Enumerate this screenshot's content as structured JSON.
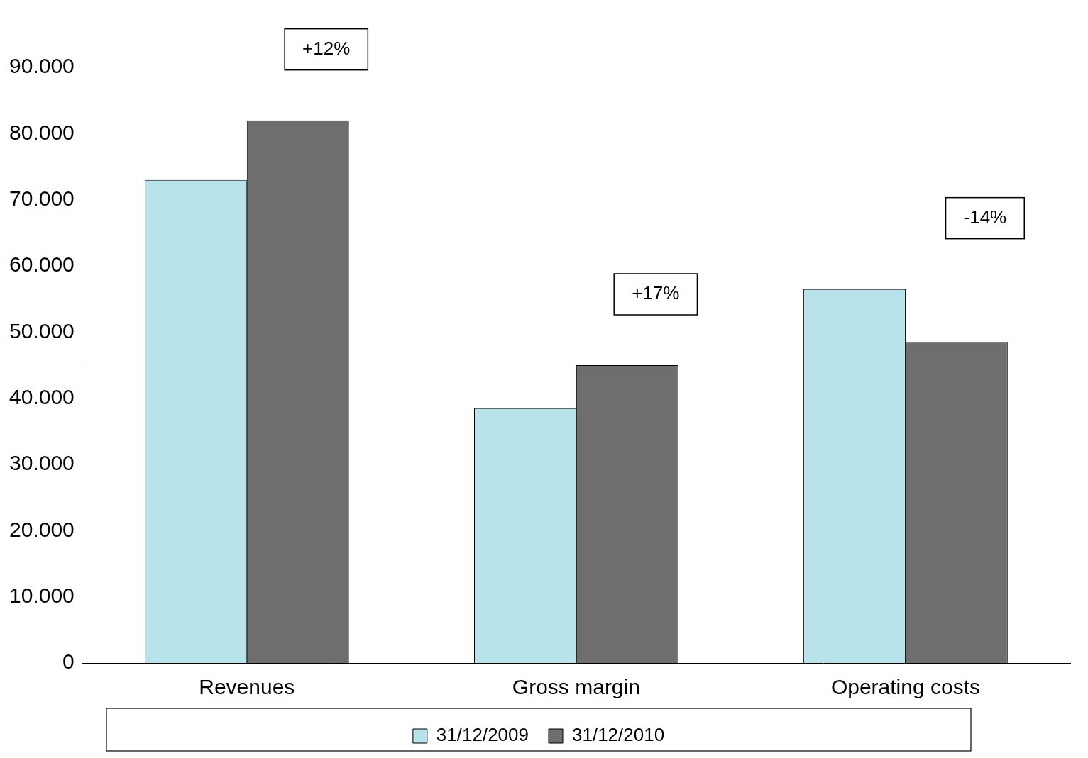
{
  "chart_data": {
    "type": "bar",
    "categories": [
      "Revenues",
      "Gross margin",
      "Operating costs"
    ],
    "series": [
      {
        "name": "31/12/2009",
        "color": "#b9e3ea",
        "values": [
          73000,
          38500,
          56500
        ]
      },
      {
        "name": "31/12/2010",
        "color": "#6e6e6e",
        "values": [
          82000,
          45000,
          48500
        ]
      }
    ],
    "ylim": [
      0,
      90000
    ],
    "yticks": [
      0,
      {
        "value": 10000,
        "label": "10.000"
      },
      {
        "value": 20000,
        "label": "20.000"
      },
      {
        "value": 30000,
        "label": "30.000"
      },
      {
        "value": 40000,
        "label": "40.000"
      },
      {
        "value": 50000,
        "label": "50.000"
      },
      {
        "value": 60000,
        "label": "60.000"
      },
      {
        "value": 70000,
        "label": "70.000"
      },
      {
        "value": 80000,
        "label": "80.000"
      },
      {
        "value": 90000,
        "label": "90.000"
      }
    ],
    "grid": false,
    "legend": "bottom",
    "annotations": [
      "+12%",
      "+17%",
      "-14%"
    ]
  }
}
